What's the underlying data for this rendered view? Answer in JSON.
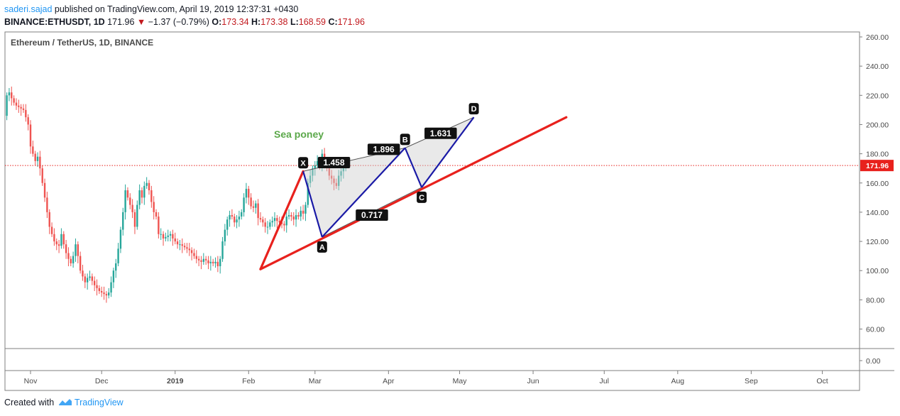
{
  "header": {
    "author": "saderi.sajad",
    "published_text": "published on TradingView.com, April 19, 2019 12:37:31 +0430",
    "symbol": "BINANCE:ETHUSDT, 1D",
    "last": "171.96",
    "change_arrow": "▼",
    "change": "−1.37 (−0.79%)",
    "o_label": "O:",
    "o": "173.34",
    "h_label": "H:",
    "h": "173.38",
    "l_label": "L:",
    "l": "168.59",
    "c_label": "C:",
    "c": "171.96"
  },
  "chart_title": "Ethereum / TetherUS, 1D, BINANCE",
  "footer": {
    "created_with": "Created with",
    "brand": "TradingView"
  },
  "colors": {
    "up": "#26a69a",
    "down": "#ef5350",
    "trend": "#e8211d",
    "pattern": "#1a1aa6",
    "price_line": "#e8211d"
  },
  "chart_data": {
    "type": "candlestick",
    "title": "Ethereum / TetherUS, 1D, BINANCE",
    "ylim": [
      50,
      265
    ],
    "y_ticks": [
      "260.00",
      "240.00",
      "220.00",
      "200.00",
      "180.00",
      "160.00",
      "140.00",
      "120.00",
      "100.00",
      "80.00",
      "60.00"
    ],
    "y_tick_values": [
      260,
      240,
      220,
      200,
      180,
      160,
      140,
      120,
      100,
      80,
      60
    ],
    "secondary_tick": "0.00",
    "last_price": 171.96,
    "last_price_label": "171.96",
    "x_months": [
      "Nov",
      "Dec",
      "2019",
      "Feb",
      "Mar",
      "Apr",
      "May",
      "Jun",
      "Jul",
      "Aug",
      "Sep",
      "Oct"
    ],
    "x_month_dates": [
      "2018-11-01",
      "2018-12-01",
      "2019-01-01",
      "2019-02-01",
      "2019-03-01",
      "2019-04-01",
      "2019-05-01",
      "2019-06-01",
      "2019-07-01",
      "2019-08-01",
      "2019-09-01",
      "2019-10-01"
    ],
    "close_series": {
      "start": "2018-10-01",
      "values": [
        207,
        206,
        205,
        206,
        204,
        203,
        206,
        205,
        204,
        203,
        201,
        196,
        195,
        199,
        200,
        203,
        204,
        205,
        207,
        205,
        206,
        220,
        222,
        218,
        215,
        213,
        212,
        211,
        210,
        205,
        200,
        185,
        180,
        175,
        178,
        170,
        160,
        150,
        140,
        130,
        125,
        120,
        118,
        117,
        125,
        118,
        112,
        108,
        105,
        110,
        118,
        110,
        100,
        96,
        92,
        95,
        96,
        93,
        90,
        88,
        86,
        85,
        84,
        83,
        85,
        92,
        100,
        105,
        115,
        128,
        140,
        155,
        150,
        145,
        140,
        130,
        145,
        155,
        150,
        158,
        160,
        155,
        147,
        140,
        137,
        125,
        125,
        122,
        123,
        124,
        125,
        122,
        120,
        118,
        118,
        117,
        116,
        115,
        114,
        112,
        110,
        108,
        107,
        106,
        108,
        107,
        105,
        106,
        105,
        106,
        103,
        108,
        120,
        128,
        135,
        138,
        137,
        133,
        135,
        137,
        140,
        150,
        156,
        150,
        144,
        143,
        146,
        136,
        135,
        133,
        130,
        130,
        133,
        134,
        136,
        134,
        133,
        132,
        131,
        137,
        138,
        137,
        135,
        138,
        137,
        141,
        139,
        145,
        160,
        165,
        170,
        172,
        175,
        172,
        180,
        175,
        170,
        165,
        163,
        160,
        158,
        165,
        168,
        170,
        172
      ]
    },
    "pattern": {
      "name": "Sea poney",
      "points": [
        {
          "label": "X",
          "date": "2019-02-24",
          "price": 168
        },
        {
          "label": "A",
          "date": "2019-03-04",
          "price": 123
        },
        {
          "label": "B",
          "date": "2019-04-08",
          "price": 184
        },
        {
          "label": "C",
          "date": "2019-04-15",
          "price": 157
        },
        {
          "label": "D",
          "date": "2019-05-07",
          "price": 205
        }
      ],
      "ratios": [
        {
          "label": "1.458",
          "date": "2019-03-09",
          "price": 174
        },
        {
          "label": "1.896",
          "date": "2019-03-30",
          "price": 183
        },
        {
          "label": "1.631",
          "date": "2019-04-23",
          "price": 194
        },
        {
          "label": "0.717",
          "date": "2019-03-25",
          "price": 138
        }
      ]
    },
    "trendlines": [
      {
        "from": {
          "date": "2019-02-06",
          "price": 101
        },
        "to": {
          "date": "2019-02-24",
          "price": 168
        }
      },
      {
        "from": {
          "date": "2019-02-06",
          "price": 101
        },
        "to": {
          "date": "2019-06-15",
          "price": 205
        }
      }
    ]
  }
}
